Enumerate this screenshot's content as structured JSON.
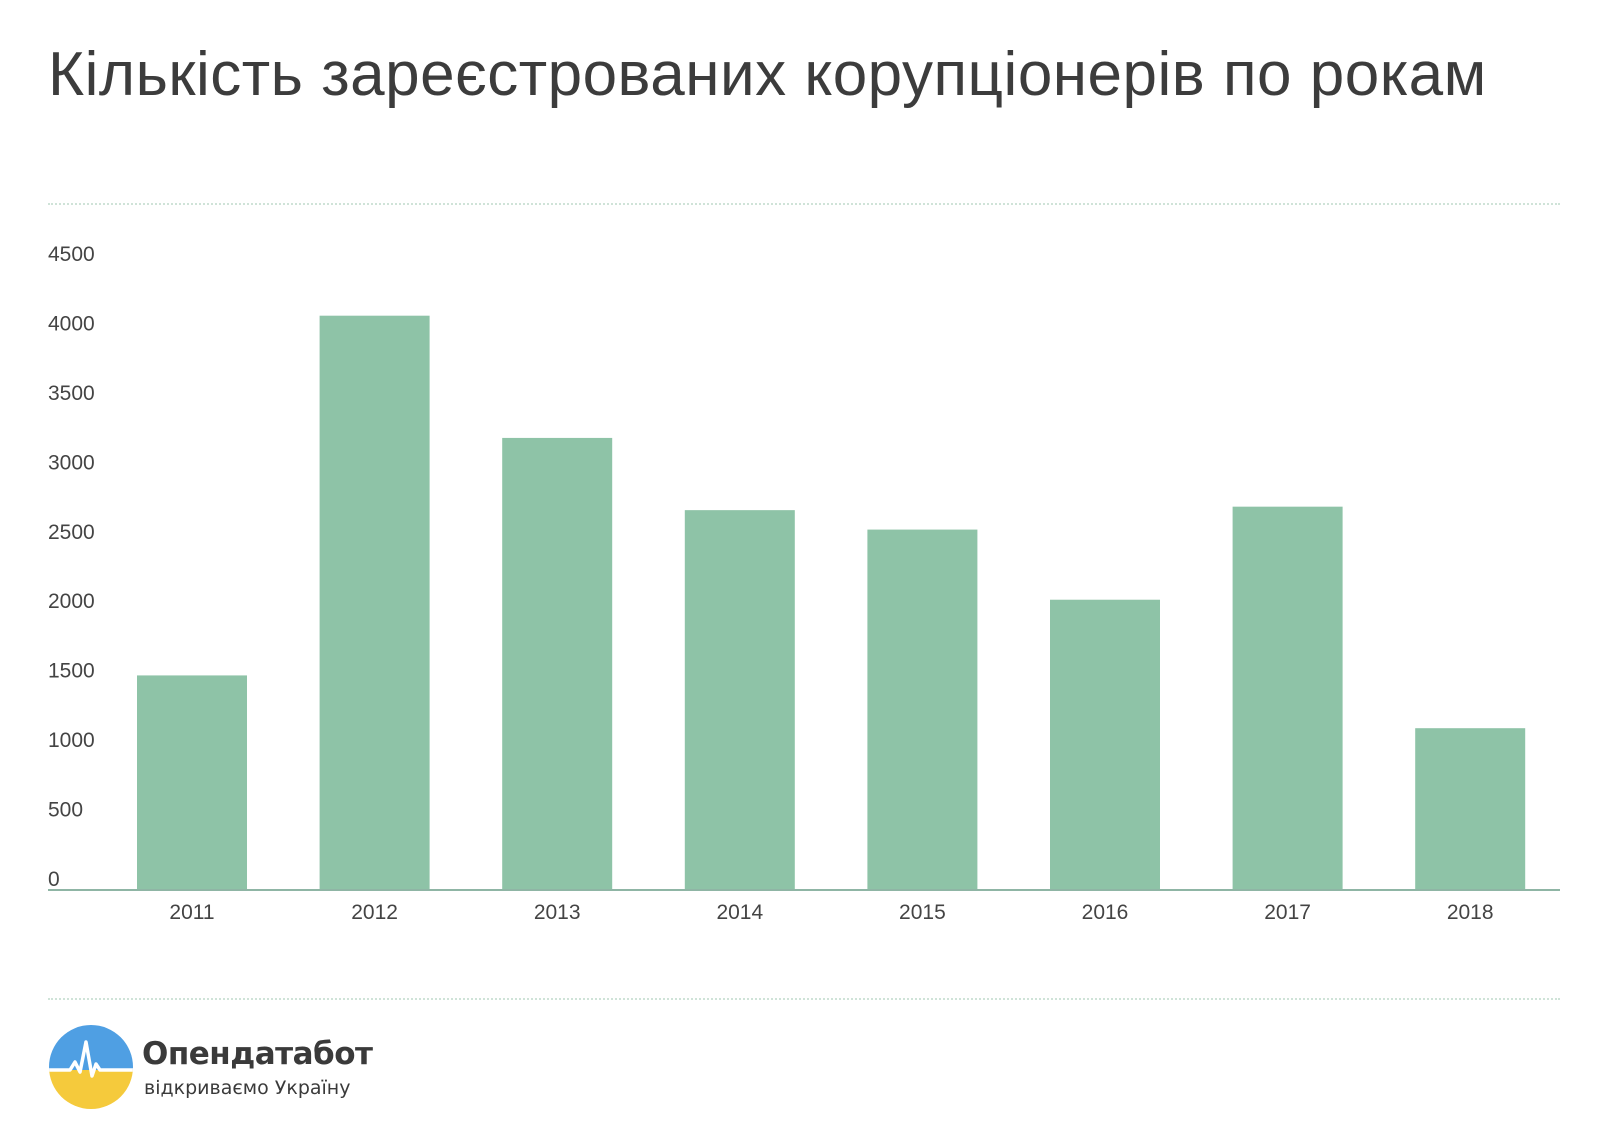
{
  "chart_data": {
    "type": "bar",
    "title": "Кількість зареєстрованих корупціонерів по рокам",
    "xlabel": "",
    "ylabel": "",
    "categories": [
      "2011",
      "2012",
      "2013",
      "2014",
      "2015",
      "2016",
      "2017",
      "2018"
    ],
    "values": [
      1545,
      4135,
      3255,
      2735,
      2595,
      2090,
      2760,
      1165
    ],
    "ylim": [
      0,
      4500
    ],
    "yticks": [
      0,
      500,
      1000,
      1500,
      2000,
      2500,
      3000,
      3500,
      4000,
      4500
    ],
    "grid": false,
    "bar_color": "#8ec3a7",
    "axis_color": "#8fb5a5"
  },
  "brand": {
    "name": "Опендатабот",
    "tagline": "відкриваємо Україну",
    "logo_colors": {
      "top": "#4f9fe3",
      "bottom": "#f5ca3c",
      "pulse": "#ffffff"
    }
  }
}
